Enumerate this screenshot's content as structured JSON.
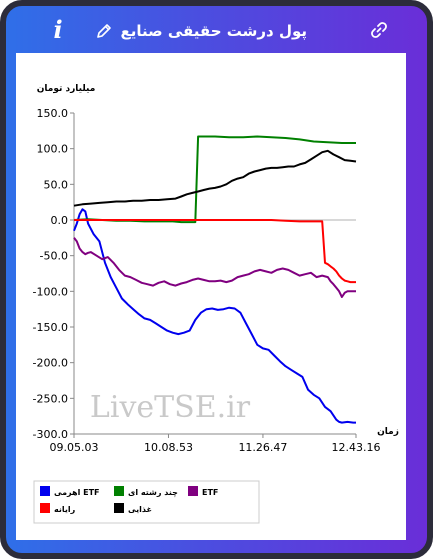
{
  "header": {
    "title": "پول درشت حقیقی صنایع",
    "info_icon": "info-icon",
    "edit_icon": "pencil-icon",
    "link_icon": "link-icon"
  },
  "watermark": "LiveTSE.ir",
  "chart_data": {
    "type": "line",
    "ylabel": "میلیارد تومان",
    "xlabel": "زمان",
    "ylim": [
      -300,
      150
    ],
    "yticks": [
      150,
      100,
      50,
      0,
      -50,
      -100,
      -150,
      -200,
      -250,
      -300
    ],
    "ytick_labels": [
      "150.0",
      "100.0",
      "50.0",
      "0.0",
      "-50.0",
      "-100.0",
      "-150.0",
      "-200.0",
      "-250.0",
      "-300.0"
    ],
    "xlim": [
      0,
      100
    ],
    "xticks": [
      0,
      33.5,
      67,
      100
    ],
    "xtick_labels": [
      "09.05.03",
      "10.08.53",
      "11.26.47",
      "12.43.16"
    ],
    "grid": false,
    "legend_position": "bottom-left",
    "series": [
      {
        "name": "اهرمی ETF",
        "color": "#0000ee",
        "x": [
          0,
          1,
          2,
          3,
          4,
          5,
          7,
          9,
          11,
          13,
          15,
          17,
          19,
          21,
          23,
          25,
          27,
          29,
          31,
          33,
          35,
          37,
          39,
          41,
          43,
          45,
          47,
          49,
          51,
          53,
          55,
          57,
          59,
          61,
          63,
          65,
          67,
          69,
          71,
          73,
          75,
          77,
          79,
          81,
          83,
          85,
          87,
          89,
          91,
          93,
          94,
          95,
          97,
          99,
          100
        ],
        "y": [
          -15,
          -5,
          8,
          15,
          12,
          -5,
          -20,
          -30,
          -60,
          -80,
          -95,
          -110,
          -118,
          -125,
          -132,
          -138,
          -140,
          -145,
          -150,
          -155,
          -158,
          -160,
          -158,
          -155,
          -140,
          -130,
          -125,
          -124,
          -126,
          -125,
          -123,
          -124,
          -130,
          -145,
          -160,
          -175,
          -180,
          -182,
          -190,
          -198,
          -205,
          -210,
          -215,
          -220,
          -238,
          -245,
          -250,
          -262,
          -268,
          -280,
          -283,
          -284,
          -283,
          -284,
          -284
        ]
      },
      {
        "name": "چند رشته ای",
        "color": "#008000",
        "x": [
          0,
          5,
          10,
          15,
          20,
          25,
          30,
          35,
          38,
          40,
          42,
          43,
          44,
          45,
          50,
          55,
          60,
          65,
          70,
          75,
          80,
          85,
          90,
          95,
          100
        ],
        "y": [
          0,
          1,
          0,
          -1,
          -1,
          -2,
          -2,
          -2,
          -3,
          -3,
          -3,
          -3,
          117,
          117,
          117,
          116,
          116,
          117,
          116,
          115,
          113,
          110,
          109,
          108,
          108
        ]
      },
      {
        "name": "ETF",
        "color": "#800080",
        "x": [
          0,
          1,
          2,
          3,
          4,
          5,
          6,
          8,
          10,
          12,
          14,
          16,
          18,
          20,
          22,
          24,
          26,
          28,
          30,
          32,
          34,
          36,
          38,
          40,
          42,
          44,
          46,
          48,
          50,
          52,
          54,
          56,
          58,
          60,
          62,
          64,
          66,
          68,
          70,
          72,
          74,
          76,
          78,
          80,
          82,
          84,
          86,
          88,
          90,
          91,
          92,
          93,
          94,
          95,
          96,
          97,
          98,
          100
        ],
        "y": [
          -25,
          -30,
          -40,
          -45,
          -48,
          -46,
          -45,
          -50,
          -55,
          -52,
          -60,
          -70,
          -78,
          -80,
          -84,
          -88,
          -90,
          -92,
          -88,
          -86,
          -90,
          -92,
          -89,
          -87,
          -84,
          -82,
          -84,
          -86,
          -86,
          -85,
          -87,
          -85,
          -80,
          -78,
          -76,
          -72,
          -70,
          -72,
          -74,
          -70,
          -68,
          -70,
          -74,
          -78,
          -76,
          -74,
          -80,
          -78,
          -80,
          -86,
          -90,
          -95,
          -100,
          -108,
          -102,
          -100,
          -100,
          -100
        ]
      },
      {
        "name": "رایانه",
        "color": "#ff0000",
        "x": [
          0,
          10,
          20,
          30,
          40,
          50,
          60,
          70,
          75,
          80,
          85,
          88,
          89,
          90,
          91,
          92,
          93,
          94,
          95,
          96,
          97,
          98,
          99,
          100
        ],
        "y": [
          0,
          0,
          0,
          0,
          0,
          0,
          0,
          0,
          -1,
          -2,
          -2,
          -2,
          -60,
          -62,
          -65,
          -68,
          -72,
          -78,
          -82,
          -85,
          -86,
          -87,
          -87,
          -87
        ]
      },
      {
        "name": "غذایی",
        "color": "#000000",
        "x": [
          0,
          3,
          6,
          9,
          12,
          15,
          18,
          21,
          24,
          27,
          30,
          33,
          36,
          38,
          40,
          42,
          44,
          46,
          48,
          50,
          52,
          54,
          56,
          58,
          60,
          62,
          64,
          66,
          68,
          70,
          72,
          74,
          76,
          78,
          80,
          82,
          84,
          86,
          88,
          90,
          92,
          94,
          96,
          98,
          100
        ],
        "y": [
          20,
          22,
          23,
          24,
          25,
          26,
          26,
          27,
          27,
          28,
          28,
          29,
          30,
          33,
          36,
          38,
          40,
          42,
          44,
          45,
          47,
          50,
          55,
          58,
          60,
          65,
          68,
          70,
          72,
          73,
          73,
          74,
          75,
          75,
          78,
          80,
          85,
          90,
          95,
          97,
          92,
          88,
          84,
          83,
          82
        ]
      }
    ]
  }
}
